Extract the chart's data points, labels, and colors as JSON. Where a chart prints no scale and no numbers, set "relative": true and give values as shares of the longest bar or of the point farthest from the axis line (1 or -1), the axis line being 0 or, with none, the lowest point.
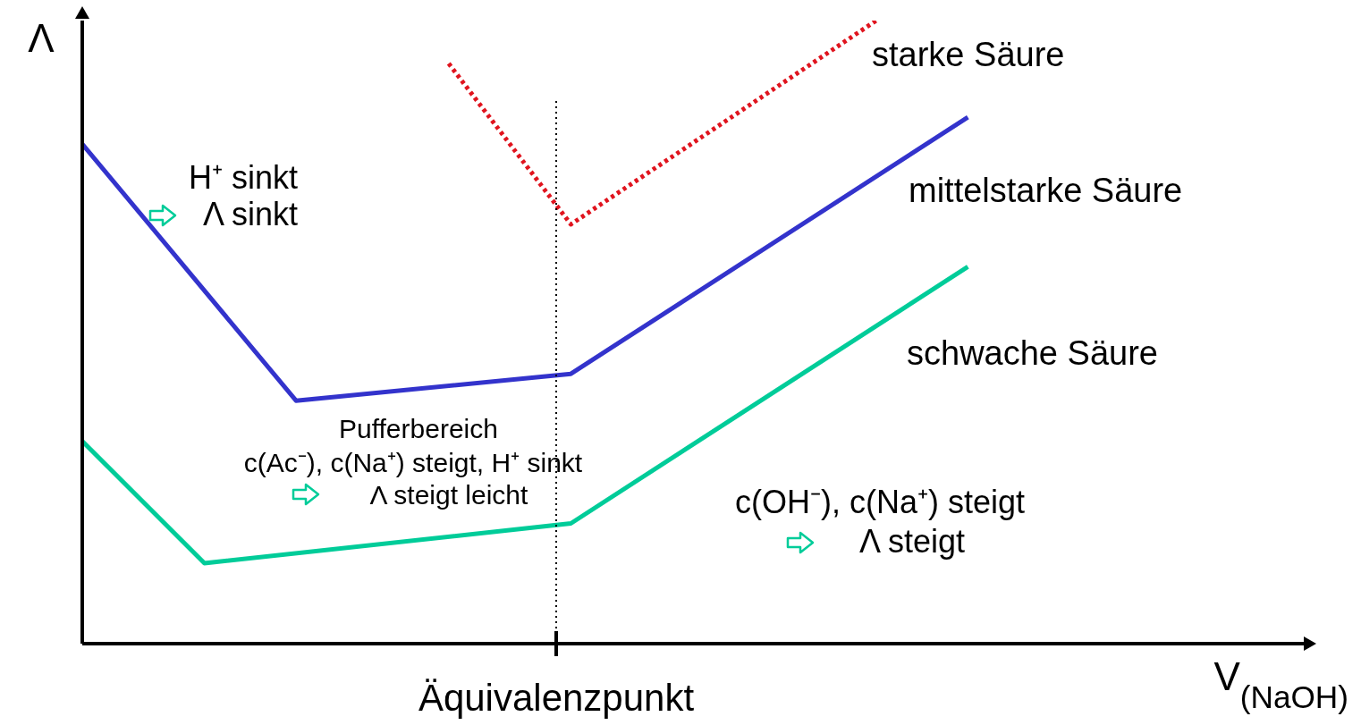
{
  "chart_data": {
    "type": "line",
    "relative": true,
    "xlabel": "V$_{(NaOH)}$",
    "ylabel": "Λ",
    "categories": [
      null,
      null,
      null,
      null,
      null,
      null,
      null,
      null,
      null,
      null,
      null,
      null,
      null,
      null,
      null,
      null,
      null,
      null,
      null,
      null,
      null,
      null,
      null,
      null,
      null,
      null,
      null,
      null,
      null,
      null,
      null,
      null,
      null,
      null,
      null,
      null,
      null,
      null,
      null,
      null,
      null
    ],
    "series": [
      {
        "name": "starke Säure",
        "color": "#e0141e",
        "line_style": "dotted",
        "values": [
          null,
          null,
          null,
          null,
          null,
          null,
          null,
          null,
          null,
          null,
          null,
          null,
          0.931,
          null,
          null,
          null,
          0.673,
          null,
          null,
          null,
          null,
          null,
          null,
          null,
          null,
          null,
          1.0,
          null,
          null,
          null,
          null,
          null,
          null,
          null,
          null,
          null,
          null,
          null,
          null,
          null,
          null
        ]
      },
      {
        "name": "mittelstarke Säure",
        "color": "#3333cc",
        "line_style": "solid",
        "values": [
          0.802,
          null,
          null,
          null,
          null,
          null,
          null,
          0.39,
          null,
          null,
          null,
          null,
          null,
          null,
          null,
          null,
          0.433,
          null,
          null,
          null,
          null,
          null,
          null,
          null,
          null,
          null,
          null,
          null,
          null,
          0.845,
          null,
          null,
          null,
          null,
          null,
          null,
          null,
          null,
          null,
          null,
          null
        ]
      },
      {
        "name": "schwache Säure",
        "color": "#00cc99",
        "line_style": "solid",
        "values": [
          0.325,
          null,
          null,
          null,
          0.129,
          null,
          null,
          null,
          null,
          null,
          null,
          null,
          null,
          null,
          null,
          null,
          0.193,
          null,
          null,
          null,
          null,
          null,
          null,
          null,
          null,
          null,
          null,
          null,
          null,
          0.605,
          null,
          null,
          null,
          null,
          null,
          null,
          null,
          null,
          null,
          null,
          null
        ]
      }
    ],
    "annotations": [
      "Äquivalenzpunkt",
      "H⁺ sinkt",
      "Λ sinkt",
      "Pufferbereich",
      "c(Ac⁻), c(Na⁺) steigt, H⁺ sinkt",
      "Λ steigt leicht",
      "c(OH⁻), c(Na⁺) steigt",
      "Λ steigt"
    ],
    "grid": false
  }
}
